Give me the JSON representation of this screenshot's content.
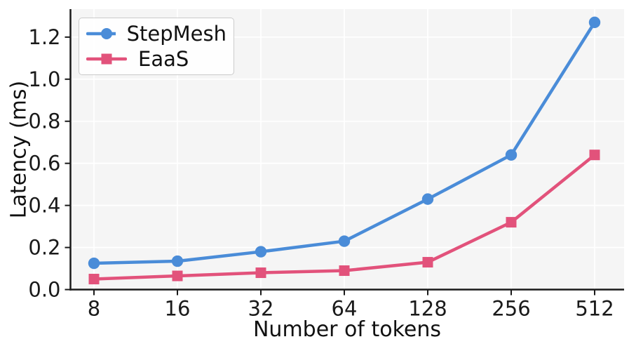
{
  "chart_data": {
    "type": "line",
    "xlabel": "Number of tokens",
    "ylabel": "Latency (ms)",
    "categories": [
      "8",
      "16",
      "32",
      "64",
      "128",
      "256",
      "512"
    ],
    "series": [
      {
        "name": "StepMesh",
        "color": "#4a8cd8",
        "marker": "circle",
        "values": [
          0.125,
          0.135,
          0.18,
          0.23,
          0.43,
          0.64,
          1.27
        ]
      },
      {
        "name": "EaaS",
        "color": "#e2527b",
        "marker": "square",
        "values": [
          0.05,
          0.065,
          0.08,
          0.09,
          0.13,
          0.32,
          0.64
        ]
      }
    ],
    "yticks": [
      0,
      0.2,
      0.4,
      0.6,
      0.8,
      1.0,
      1.2
    ],
    "y_tick_labels": [
      "0.0",
      "0.2",
      "0.4",
      "0.6",
      "0.8",
      "1.0",
      "1.2"
    ],
    "ylim": [
      0,
      1.333
    ],
    "grid": true,
    "legend_position": "upper-left",
    "colors": {
      "plot_background": "#f5f5f5",
      "grid": "#ffffff",
      "axis": "#1a1a1a",
      "legend_border": "#cbcbcb",
      "legend_background": "#ffffff"
    }
  }
}
